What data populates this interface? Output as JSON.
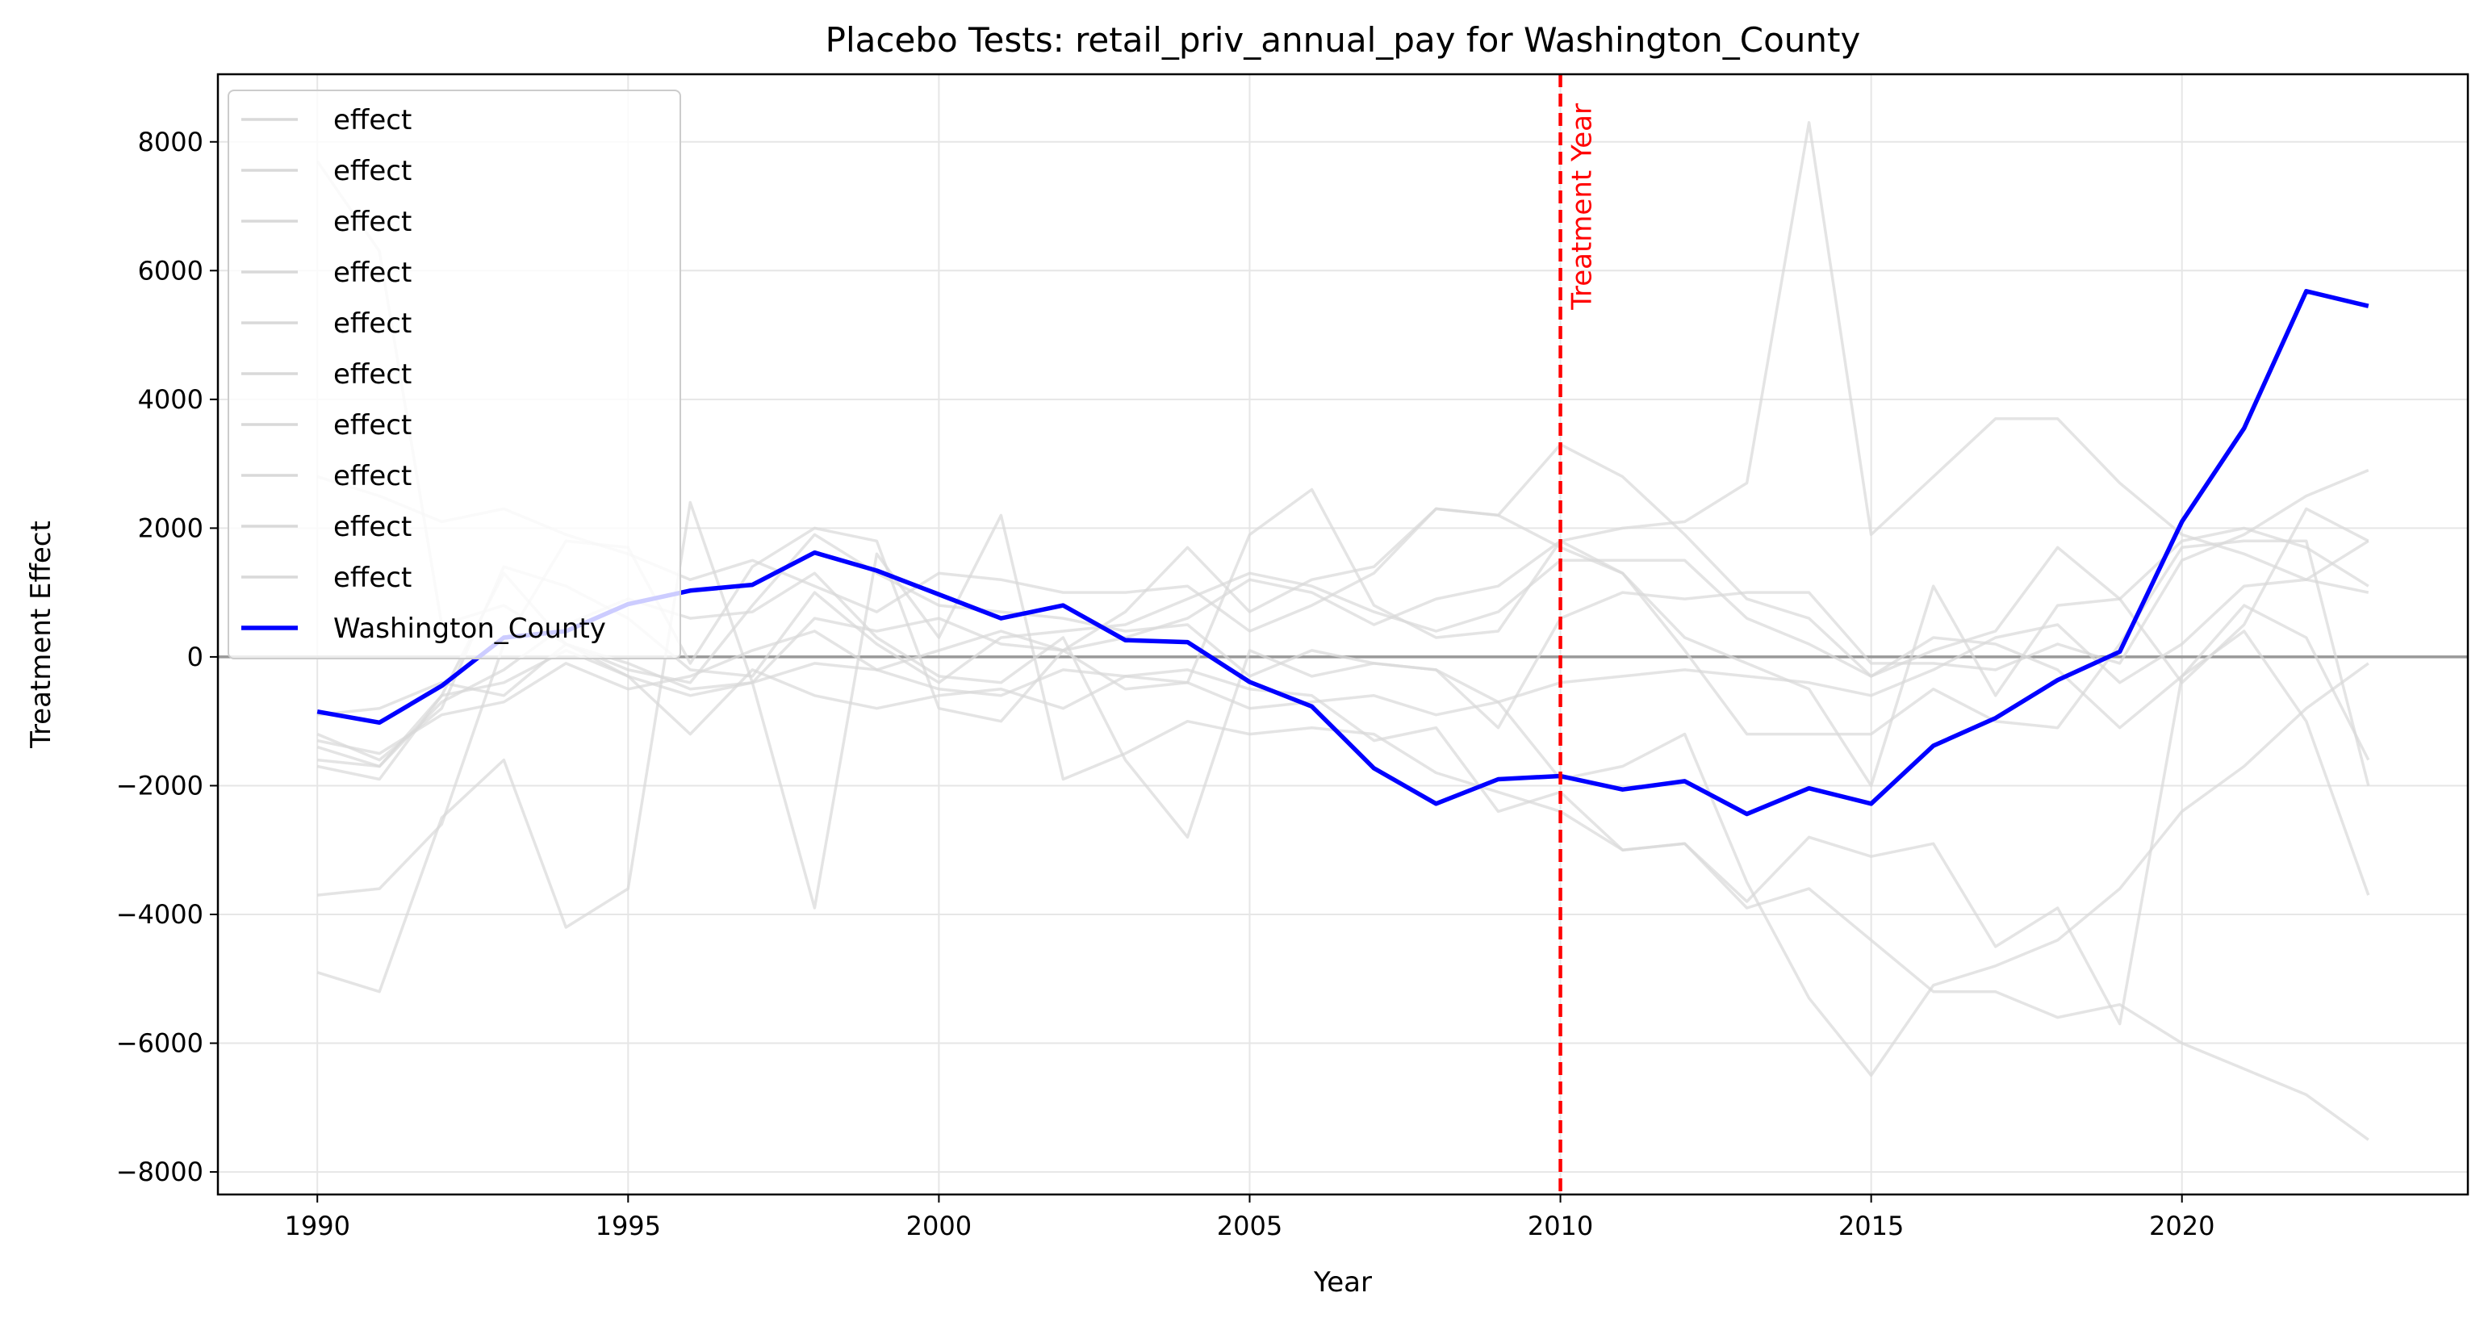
{
  "chart_data": {
    "type": "line",
    "title": "Placebo Tests: retail_priv_annual_pay for Washington_County",
    "xlabel": "Year",
    "ylabel": "Treatment Effect",
    "xlim": [
      1988.4,
      2024.6
    ],
    "ylim": [
      -8350,
      9050
    ],
    "x_ticks": [
      1990,
      1995,
      2000,
      2005,
      2010,
      2015,
      2020
    ],
    "y_ticks": [
      -8000,
      -6000,
      -4000,
      -2000,
      0,
      2000,
      4000,
      6000,
      8000
    ],
    "grid": true,
    "legend_position": "top-left",
    "zero_line": 0,
    "treatment_year": 2010,
    "treatment_label": "Treatment Year",
    "colors": {
      "placebo": "#d9d9d9",
      "treated": "#0000ff",
      "treatment_line": "#ff0000",
      "zero_line": "#999999"
    },
    "x": [
      1990,
      1991,
      1992,
      1993,
      1994,
      1995,
      1996,
      1997,
      1998,
      1999,
      2000,
      2001,
      2002,
      2003,
      2004,
      2005,
      2006,
      2007,
      2008,
      2009,
      2010,
      2011,
      2012,
      2013,
      2014,
      2015,
      2016,
      2017,
      2018,
      2019,
      2020,
      2021,
      2022,
      2023
    ],
    "series": [
      {
        "name": "effect",
        "role": "placebo",
        "values": [
          -1700,
          -1900,
          -600,
          -400,
          100,
          -300,
          -600,
          -400,
          -100,
          -200,
          -500,
          -600,
          -200,
          -300,
          -400,
          -800,
          -700,
          -600,
          -900,
          -700,
          -400,
          -300,
          -200,
          -300,
          -400,
          -600,
          -200,
          300,
          500,
          -400,
          200,
          1100,
          1200,
          1800
        ]
      },
      {
        "name": "effect",
        "role": "placebo",
        "values": [
          -1200,
          -1600,
          -800,
          1400,
          1100,
          600,
          -200,
          -300,
          1000,
          200,
          -400,
          300,
          400,
          500,
          900,
          1300,
          1100,
          700,
          400,
          700,
          1500,
          1500,
          1500,
          600,
          200,
          -300,
          100,
          400,
          1700,
          900,
          -400,
          500,
          2300,
          1800
        ]
      },
      {
        "name": "effect",
        "role": "placebo",
        "values": [
          -1600,
          -1700,
          -600,
          1300,
          200,
          -100,
          -500,
          -400,
          600,
          400,
          600,
          200,
          100,
          300,
          600,
          1200,
          1000,
          500,
          900,
          1100,
          1800,
          2000,
          2100,
          2700,
          8300,
          1900,
          2800,
          3700,
          3700,
          2700,
          1900,
          1600,
          1200,
          1000
        ]
      },
      {
        "name": "effect",
        "role": "placebo",
        "values": [
          -3700,
          -3600,
          -2600,
          200,
          1800,
          1700,
          -100,
          1400,
          2000,
          1800,
          -800,
          -1000,
          100,
          -500,
          -400,
          1900,
          2600,
          800,
          300,
          400,
          1800,
          1300,
          100,
          -1200,
          -1200,
          -1200,
          -500,
          -1000,
          -1100,
          200,
          1700,
          1800,
          1800,
          -2000
        ]
      },
      {
        "name": "effect",
        "role": "placebo",
        "values": [
          -4900,
          -5200,
          -2500,
          -1600,
          -4200,
          -3600,
          2400,
          -400,
          -3900,
          1600,
          300,
          2200,
          -1900,
          -1500,
          -1000,
          -1200,
          -1100,
          -1200,
          -1800,
          -2100,
          -2400,
          -3000,
          -2900,
          -3900,
          -3600,
          -4400,
          -5200,
          -5200,
          -5600,
          -5400,
          -6000,
          -6400,
          -6800,
          -7500
        ]
      },
      {
        "name": "effect",
        "role": "placebo",
        "values": [
          7700,
          6300,
          500,
          800,
          200,
          -200,
          -400,
          800,
          1900,
          1300,
          800,
          700,
          600,
          400,
          500,
          -300,
          100,
          -100,
          -200,
          -700,
          -1900,
          -1700,
          -1200,
          -3500,
          -5300,
          -6500,
          -5100,
          -4800,
          -4400,
          -3600,
          -2400,
          -1700,
          -800,
          -100
        ]
      },
      {
        "name": "effect",
        "role": "placebo",
        "values": [
          -900,
          -800,
          -400,
          -600,
          200,
          -300,
          -1200,
          -200,
          -600,
          -800,
          -600,
          -500,
          -800,
          -300,
          -200,
          -500,
          -600,
          -1300,
          -1100,
          -2400,
          -2100,
          -3000,
          -2900,
          -3800,
          -2800,
          -3100,
          -2900,
          -4500,
          -3900,
          -5700,
          -300,
          400,
          -1000,
          -3700
        ]
      },
      {
        "name": "effect",
        "role": "placebo",
        "values": [
          2800,
          2500,
          2100,
          2300,
          1900,
          1600,
          1200,
          1500,
          1100,
          700,
          1300,
          1200,
          1000,
          1000,
          1100,
          400,
          800,
          1300,
          2300,
          2200,
          1700,
          1300,
          300,
          -100,
          -500,
          -2000,
          1100,
          -600,
          800,
          900,
          1800,
          2000,
          1700,
          1100
        ]
      },
      {
        "name": "effect",
        "role": "placebo",
        "values": [
          -1300,
          -1500,
          -900,
          -700,
          -100,
          -500,
          -300,
          100,
          400,
          -200,
          100,
          400,
          100,
          700,
          1700,
          700,
          1200,
          1400,
          2300,
          2200,
          3300,
          2800,
          1900,
          900,
          600,
          -300,
          300,
          200,
          -200,
          -1100,
          -300,
          800,
          300,
          -1600
        ]
      },
      {
        "name": "effect",
        "role": "placebo",
        "values": [
          -1400,
          -1700,
          -700,
          -200,
          500,
          900,
          600,
          700,
          1300,
          300,
          -300,
          -400,
          300,
          -1600,
          -2800,
          100,
          -300,
          -100,
          -200,
          -1100,
          600,
          1000,
          900,
          1000,
          1000,
          -100,
          -100,
          -200,
          200,
          -100,
          1500,
          1900,
          2500,
          2900
        ]
      },
      {
        "name": "Washington_County",
        "role": "treated",
        "values": [
          -850,
          -1020,
          -450,
          300,
          400,
          820,
          1030,
          1120,
          1620,
          1340,
          970,
          600,
          800,
          260,
          230,
          -390,
          -770,
          -1730,
          -2280,
          -1900,
          -1850,
          -2060,
          -1930,
          -2440,
          -2040,
          -2280,
          -1380,
          -950,
          -360,
          80,
          2100,
          3550,
          5680,
          5450
        ]
      }
    ]
  }
}
